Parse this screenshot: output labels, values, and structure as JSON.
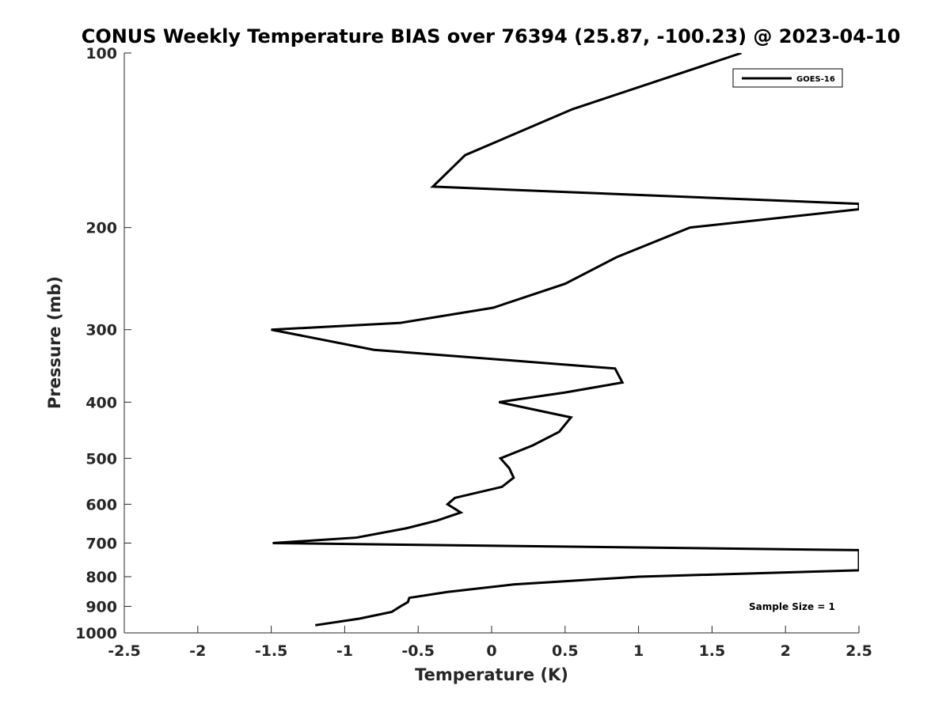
{
  "chart_data": {
    "type": "line",
    "title": "CONUS Weekly Temperature BIAS over 76394 (25.87, -100.23) @ 2023-04-10",
    "xlabel": "Temperature (K)",
    "ylabel": "Pressure (mb)",
    "xlim": [
      -2.5,
      2.5
    ],
    "ylim": [
      1000,
      100
    ],
    "yscale": "log",
    "x_ticks": [
      -2.5,
      -2,
      -1.5,
      -1,
      -0.5,
      0,
      0.5,
      1,
      1.5,
      2,
      2.5
    ],
    "x_tick_labels": [
      "-2.5",
      "-2",
      "-1.5",
      "-1",
      "-0.5",
      "0",
      "0.5",
      "1",
      "1.5",
      "2",
      "2.5"
    ],
    "y_ticks": [
      100,
      200,
      300,
      400,
      500,
      600,
      700,
      800,
      900,
      1000
    ],
    "y_tick_labels": [
      "100",
      "200",
      "300",
      "400",
      "500",
      "600",
      "700",
      "800",
      "900",
      "1000"
    ],
    "grid": false,
    "legend_position": "top-right",
    "line_color": "#000000",
    "annotation": "Sample Size = 1",
    "series": [
      {
        "name": "GOES-16",
        "x": [
          1.7,
          0.55,
          -0.18,
          -0.4,
          2.5,
          2.5,
          1.35,
          0.85,
          0.5,
          0.01,
          -0.62,
          -1.5,
          -0.8,
          0.84,
          0.89,
          0.5,
          0.05,
          0.54,
          0.46,
          0.28,
          0.06,
          0.12,
          0.15,
          0.07,
          -0.25,
          -0.3,
          -0.21,
          -0.37,
          -0.58,
          -0.92,
          -1.49,
          2.5,
          2.5,
          1.0,
          0.15,
          -0.3,
          -0.56,
          -0.57,
          -0.62,
          -0.68,
          -0.9,
          -1.2
        ],
        "y": [
          100,
          125,
          150,
          170,
          182,
          186,
          200,
          225,
          250,
          275,
          292,
          300,
          325,
          350,
          370,
          385,
          400,
          425,
          450,
          475,
          500,
          520,
          540,
          560,
          585,
          600,
          620,
          640,
          660,
          685,
          700,
          720,
          780,
          800,
          825,
          850,
          870,
          885,
          900,
          920,
          945,
          970
        ]
      }
    ]
  }
}
